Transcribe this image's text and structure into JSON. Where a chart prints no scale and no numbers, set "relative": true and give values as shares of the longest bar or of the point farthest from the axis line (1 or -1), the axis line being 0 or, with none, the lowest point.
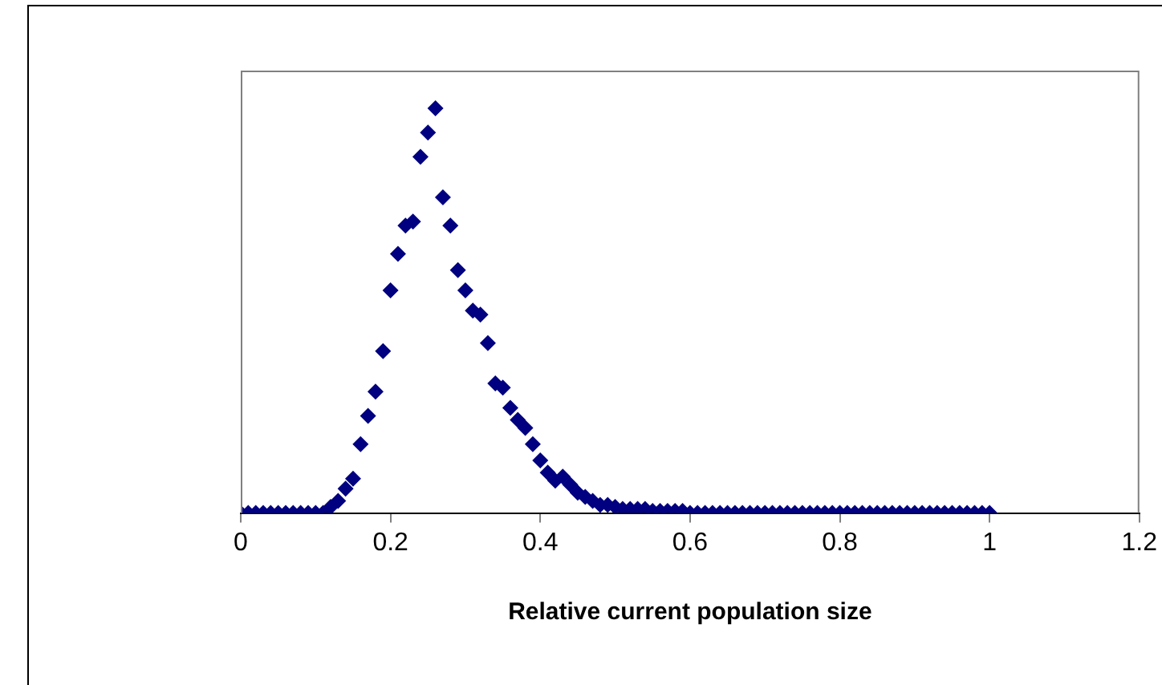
{
  "chart_data": {
    "type": "scatter",
    "xlabel": "Relative current population size",
    "relative": true,
    "marker": "diamond",
    "grid": false,
    "legend": false,
    "xlim": [
      0,
      1.2
    ],
    "xticks": [
      0,
      0.2,
      0.4,
      0.6,
      0.8,
      1,
      1.2
    ],
    "series": [
      {
        "color": "#000080",
        "x": [
          0,
          0.01,
          0.02,
          0.03,
          0.04,
          0.05,
          0.06,
          0.07,
          0.08,
          0.09,
          0.1,
          0.11,
          0.12,
          0.13,
          0.14,
          0.15,
          0.16,
          0.17,
          0.18,
          0.19,
          0.2,
          0.21,
          0.22,
          0.23,
          0.24,
          0.25,
          0.26,
          0.27,
          0.28,
          0.29,
          0.3,
          0.31,
          0.32,
          0.33,
          0.34,
          0.35,
          0.36,
          0.37,
          0.38,
          0.39,
          0.4,
          0.41,
          0.42,
          0.43,
          0.44,
          0.45,
          0.46,
          0.47,
          0.48,
          0.49,
          0.5,
          0.51,
          0.52,
          0.53,
          0.54,
          0.55,
          0.56,
          0.57,
          0.58,
          0.59,
          0.6,
          0.61,
          0.62,
          0.63,
          0.64,
          0.65,
          0.66,
          0.67,
          0.68,
          0.69,
          0.7,
          0.71,
          0.72,
          0.73,
          0.74,
          0.75,
          0.76,
          0.77,
          0.78,
          0.79,
          0.8,
          0.81,
          0.82,
          0.83,
          0.84,
          0.85,
          0.86,
          0.87,
          0.88,
          0.89,
          0.9,
          0.91,
          0.92,
          0.93,
          0.94,
          0.95,
          0.96,
          0.97,
          0.98,
          0.99,
          1
        ],
        "values": [
          0,
          0,
          0,
          0,
          0,
          0,
          0,
          0,
          0,
          0,
          0,
          0,
          0.015,
          0.03,
          0.06,
          0.085,
          0.17,
          0.24,
          0.3,
          0.4,
          0.55,
          0.64,
          0.71,
          0.72,
          0.88,
          0.94,
          1,
          0.78,
          0.71,
          0.6,
          0.55,
          0.5,
          0.49,
          0.42,
          0.32,
          0.31,
          0.26,
          0.23,
          0.21,
          0.17,
          0.13,
          0.1,
          0.08,
          0.09,
          0.07,
          0.05,
          0.04,
          0.03,
          0.02,
          0.02,
          0.015,
          0.01,
          0.01,
          0.01,
          0.01,
          0.005,
          0.005,
          0.005,
          0.005,
          0.005,
          0,
          0,
          0,
          0,
          0,
          0,
          0,
          0,
          0,
          0,
          0,
          0,
          0,
          0,
          0,
          0,
          0,
          0,
          0,
          0,
          0,
          0,
          0,
          0,
          0,
          0,
          0,
          0,
          0,
          0,
          0,
          0,
          0,
          0,
          0,
          0,
          0,
          0,
          0,
          0,
          0
        ]
      }
    ]
  }
}
